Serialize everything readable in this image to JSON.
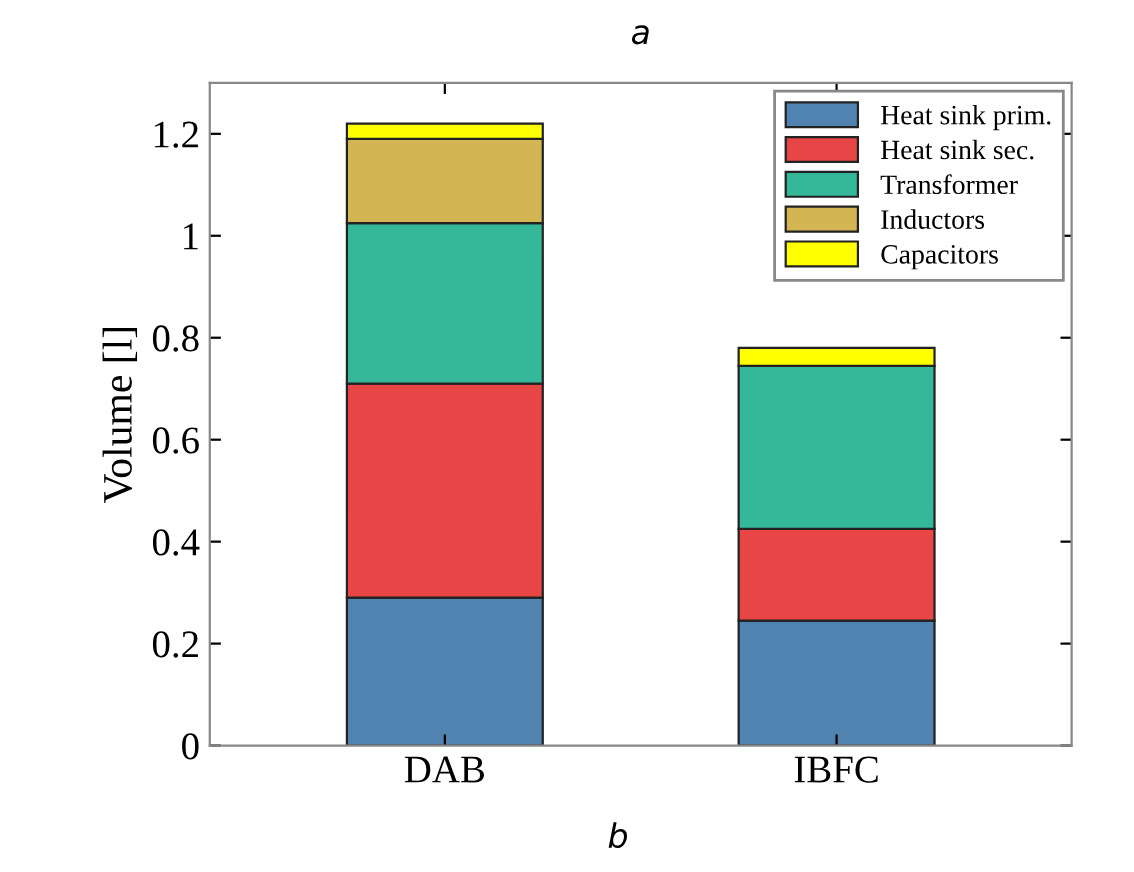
{
  "chart_data": {
    "type": "bar",
    "stacked": true,
    "title": "a",
    "ylabel": "Volume [l]",
    "annotations": [
      "b"
    ],
    "categories": [
      "DAB",
      "IBFC"
    ],
    "series": [
      {
        "name": "Heat sink prim.",
        "color": "#5083b0",
        "values": [
          0.29,
          0.245
        ]
      },
      {
        "name": "Heat sink sec.",
        "color": "#e84646",
        "values": [
          0.42,
          0.18
        ]
      },
      {
        "name": "Transformer",
        "color": "#35b89a",
        "values": [
          0.315,
          0.32
        ]
      },
      {
        "name": "Inductors",
        "color": "#d4b553",
        "values": [
          0.165,
          0
        ]
      },
      {
        "name": "Capacitors",
        "color": "#ffff00",
        "values": [
          0.03,
          0.035
        ]
      }
    ],
    "ylim": [
      0,
      1.3
    ],
    "yticks": [
      0,
      0.2,
      0.4,
      0.6,
      0.8,
      1,
      1.2
    ],
    "grid": false,
    "legend": "top right"
  }
}
